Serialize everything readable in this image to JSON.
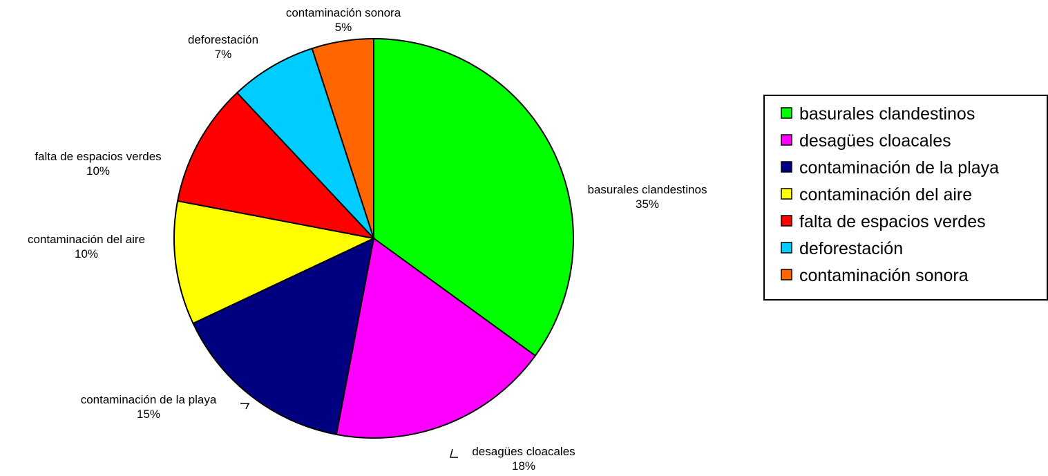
{
  "chart_data": {
    "type": "pie",
    "title": "",
    "slices": [
      {
        "label": "basurales clandestinos",
        "value": 35,
        "pct_label": "35%",
        "color": "#00FF00"
      },
      {
        "label": "desagües cloacales",
        "value": 18,
        "pct_label": "18%",
        "color": "#FF00FF"
      },
      {
        "label": "contaminación de la playa",
        "value": 15,
        "pct_label": "15%",
        "color": "#000080"
      },
      {
        "label": "contaminación del aire",
        "value": 10,
        "pct_label": "10%",
        "color": "#FFFF00"
      },
      {
        "label": "falta de espacios verdes",
        "value": 10,
        "pct_label": "10%",
        "color": "#FF0000"
      },
      {
        "label": "deforestación",
        "value": 7,
        "pct_label": "7%",
        "color": "#00CCFF"
      },
      {
        "label": "contaminación sonora",
        "value": 5,
        "pct_label": "5%",
        "color": "#FF6600"
      }
    ],
    "legend_position": "right",
    "start_angle": "top",
    "direction": "clockwise"
  }
}
